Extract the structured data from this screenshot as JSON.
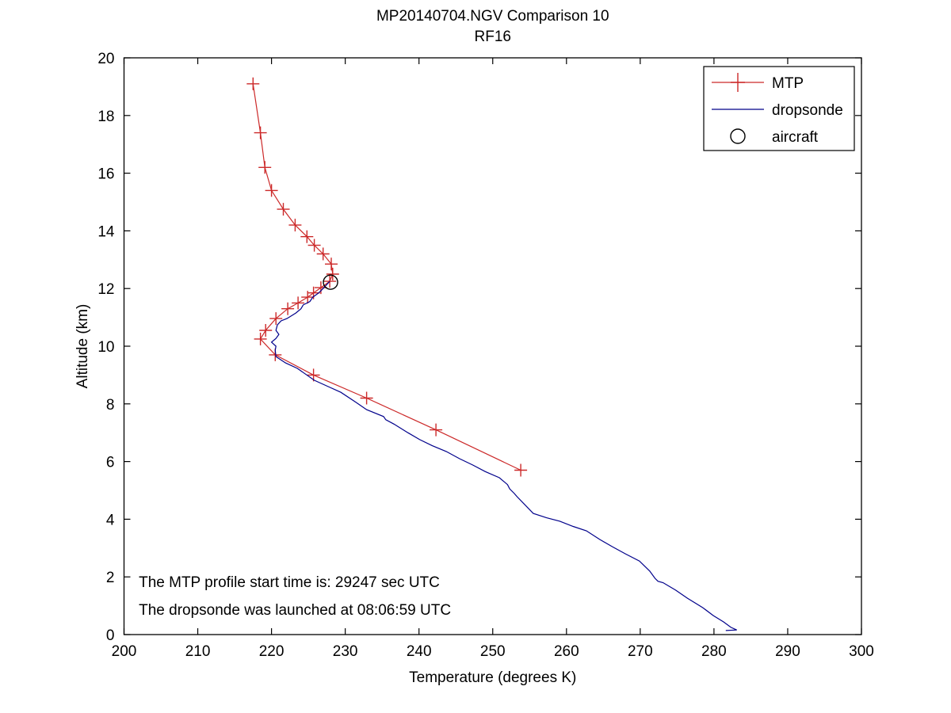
{
  "figure": {
    "background": "#ffffff"
  },
  "chart_data": {
    "type": "line",
    "title": "MP20140704.NGV Comparison 10",
    "subtitle": "RF16",
    "xlabel": "Temperature (degrees K)",
    "ylabel": "Altitude (km)",
    "xlim": [
      200,
      300
    ],
    "ylim": [
      0,
      20
    ],
    "xticks": [
      200,
      210,
      220,
      230,
      240,
      250,
      260,
      270,
      280,
      290,
      300
    ],
    "yticks": [
      0,
      2,
      4,
      6,
      8,
      10,
      12,
      14,
      16,
      18,
      20
    ],
    "grid": false,
    "axis_color": "#000000",
    "legend": {
      "position": "top-right",
      "entries": [
        {
          "label": "MTP",
          "type": "line",
          "marker": "plus",
          "color": "#cc2929"
        },
        {
          "label": "dropsonde",
          "type": "line",
          "marker": "none",
          "color": "#00008b"
        },
        {
          "label": "aircraft",
          "type": "marker",
          "marker": "circle",
          "color": "#000000"
        }
      ]
    },
    "series": [
      {
        "name": "MTP",
        "color": "#cc2929",
        "marker": "plus",
        "points": [
          [
            217.5,
            19.1
          ],
          [
            218.5,
            17.4
          ],
          [
            219.1,
            16.2
          ],
          [
            220.0,
            15.4
          ],
          [
            221.6,
            14.75
          ],
          [
            223.2,
            14.2
          ],
          [
            224.8,
            13.8
          ],
          [
            225.8,
            13.5
          ],
          [
            227.0,
            13.2
          ],
          [
            228.1,
            12.85
          ],
          [
            228.3,
            12.5
          ],
          [
            227.9,
            12.25
          ],
          [
            226.7,
            12.03
          ],
          [
            225.7,
            11.85
          ],
          [
            224.9,
            11.7
          ],
          [
            223.6,
            11.5
          ],
          [
            222.2,
            11.3
          ],
          [
            220.6,
            10.96
          ],
          [
            219.2,
            10.55
          ],
          [
            218.5,
            10.25
          ],
          [
            220.5,
            9.7
          ],
          [
            225.7,
            9.0
          ],
          [
            232.9,
            8.2
          ],
          [
            242.3,
            7.1
          ],
          [
            253.8,
            5.7
          ]
        ]
      },
      {
        "name": "dropsonde",
        "color": "#00008b",
        "marker": "none",
        "points": [
          [
            227.9,
            12.25
          ],
          [
            227.0,
            12.0
          ],
          [
            226.4,
            11.85
          ],
          [
            225.6,
            11.7
          ],
          [
            225.2,
            11.55
          ],
          [
            224.3,
            11.43
          ],
          [
            224.0,
            11.3
          ],
          [
            223.3,
            11.15
          ],
          [
            222.1,
            10.96
          ],
          [
            221.3,
            10.88
          ],
          [
            220.8,
            10.74
          ],
          [
            220.6,
            10.55
          ],
          [
            221.0,
            10.41
          ],
          [
            220.6,
            10.27
          ],
          [
            220.0,
            10.14
          ],
          [
            220.6,
            10.0
          ],
          [
            220.5,
            9.86
          ],
          [
            220.6,
            9.64
          ],
          [
            221.9,
            9.42
          ],
          [
            223.5,
            9.23
          ],
          [
            225.8,
            8.82
          ],
          [
            227.7,
            8.6
          ],
          [
            229.4,
            8.4
          ],
          [
            231.2,
            8.1
          ],
          [
            232.9,
            7.8
          ],
          [
            235.2,
            7.56
          ],
          [
            235.5,
            7.45
          ],
          [
            236.6,
            7.3
          ],
          [
            238.5,
            7.0
          ],
          [
            240.1,
            6.76
          ],
          [
            241.8,
            6.55
          ],
          [
            243.7,
            6.35
          ],
          [
            245.5,
            6.1
          ],
          [
            247.3,
            5.88
          ],
          [
            249.0,
            5.65
          ],
          [
            250.9,
            5.44
          ],
          [
            252.0,
            5.2
          ],
          [
            252.3,
            5.05
          ],
          [
            252.9,
            4.9
          ],
          [
            253.3,
            4.78
          ],
          [
            255.5,
            4.2
          ],
          [
            257.3,
            4.05
          ],
          [
            259.1,
            3.93
          ],
          [
            260.9,
            3.75
          ],
          [
            262.7,
            3.6
          ],
          [
            264.5,
            3.3
          ],
          [
            266.2,
            3.05
          ],
          [
            268.0,
            2.8
          ],
          [
            269.9,
            2.55
          ],
          [
            271.3,
            2.2
          ],
          [
            272.0,
            1.95
          ],
          [
            272.4,
            1.85
          ],
          [
            273.1,
            1.8
          ],
          [
            274.8,
            1.54
          ],
          [
            276.4,
            1.26
          ],
          [
            278.5,
            0.93
          ],
          [
            279.9,
            0.66
          ],
          [
            281.3,
            0.44
          ],
          [
            282.3,
            0.25
          ],
          [
            283.1,
            0.16
          ],
          [
            281.6,
            0.14
          ]
        ]
      },
      {
        "name": "aircraft",
        "color": "#000000",
        "marker": "circle",
        "points": [
          [
            228.0,
            12.22
          ]
        ]
      }
    ],
    "annotations": [
      {
        "text": "The MTP profile start time is: 29247 sec UTC",
        "x": 202,
        "y": 1.65
      },
      {
        "text": "The dropsonde was launched at 08:06:59 UTC",
        "x": 202,
        "y": 0.69
      }
    ]
  }
}
